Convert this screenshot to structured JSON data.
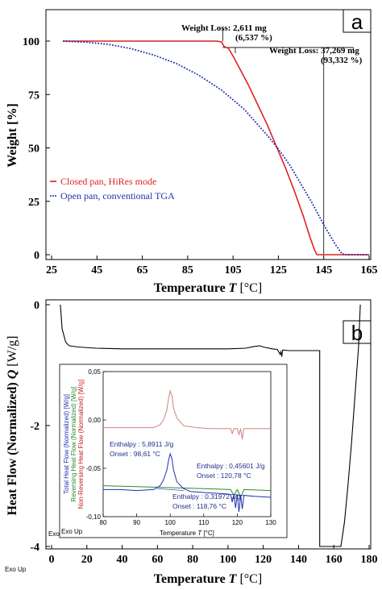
{
  "chart_data": [
    {
      "panel": "a",
      "type": "line",
      "xlabel_prefix": "Temperature ",
      "xlabel_symbol": "T",
      "xlabel_unit": "[°C]",
      "ylabel": "Weight [%]",
      "xlim": [
        25,
        165
      ],
      "ylim": [
        0,
        105
      ],
      "xticks": [
        25,
        45,
        65,
        85,
        105,
        125,
        145,
        165
      ],
      "yticks": [
        0,
        25,
        50,
        75,
        100
      ],
      "series": [
        {
          "name": "Closed pan, HiRes mode",
          "color": "#e02020",
          "dash": "solid",
          "x": [
            30,
            50,
            70,
            90,
            98,
            100,
            101,
            103,
            105,
            108,
            112,
            116,
            120,
            124,
            128,
            132,
            136,
            139,
            141,
            142,
            145,
            155,
            165
          ],
          "y": [
            100,
            100,
            100,
            100,
            100,
            99.6,
            97.5,
            96.6,
            93,
            87,
            79,
            70,
            61,
            51,
            41,
            30,
            18,
            8,
            2,
            0,
            0,
            0,
            0
          ]
        },
        {
          "name": "Open pan, conventional TGA",
          "color": "#2030b0",
          "dash": "dotted",
          "x": [
            30,
            40,
            50,
            60,
            70,
            80,
            90,
            100,
            110,
            120,
            125,
            130,
            135,
            140,
            145,
            150,
            153,
            155,
            165
          ],
          "y": [
            100,
            99.5,
            98.5,
            96.5,
            93.5,
            89.5,
            84,
            77,
            68,
            56,
            49.5,
            42,
            33,
            24,
            14,
            5,
            0.5,
            0,
            0
          ]
        }
      ],
      "annotations": [
        {
          "text": "Weight Loss: 2,611 mg",
          "sub": "(6,537 %)"
        },
        {
          "text": "Weight Loss: 37,269 mg",
          "sub": "(93,332 %)"
        }
      ]
    },
    {
      "panel": "b",
      "type": "line",
      "xlabel_prefix": "Temperature ",
      "xlabel_symbol": "T",
      "xlabel_unit": "[°C]",
      "ylabel_prefix": "Heat Flow (Normalized) ",
      "ylabel_symbol": "Q",
      "ylabel_unit": "[W/g]",
      "xlim": [
        0,
        180
      ],
      "ylim": [
        -4,
        0
      ],
      "xticks": [
        0,
        20,
        40,
        60,
        80,
        100,
        120,
        140,
        160,
        180
      ],
      "yticks": [
        0,
        -2,
        -4
      ],
      "series": [
        {
          "name": "Total heat flow",
          "color": "#000000",
          "x": [
            5,
            6,
            8,
            10,
            15,
            25,
            40,
            60,
            80,
            100,
            110,
            115,
            118,
            120,
            125,
            128,
            129.5,
            130,
            130.5,
            131,
            135,
            145,
            152,
            152,
            164,
            166,
            168,
            170,
            172,
            174,
            175
          ],
          "y": [
            0,
            -0.4,
            -0.62,
            -0.68,
            -0.7,
            -0.72,
            -0.73,
            -0.73,
            -0.73,
            -0.73,
            -0.72,
            -0.69,
            -0.68,
            -0.7,
            -0.73,
            -0.74,
            -0.82,
            -0.78,
            -0.86,
            -0.75,
            -0.76,
            -0.76,
            -0.76,
            -4,
            -4,
            -3.6,
            -3.0,
            -2.3,
            -1.5,
            -0.7,
            0
          ]
        }
      ],
      "corner_text": "Exo Up",
      "inset": {
        "type": "line",
        "xlim": [
          80,
          130
        ],
        "ylim": [
          -0.1,
          0.05
        ],
        "xticks": [
          80,
          90,
          100,
          110,
          120,
          130
        ],
        "yticks": [
          0.05,
          0.0,
          -0.05,
          -0.1
        ],
        "ytick_labels": [
          "0,05",
          "0,00",
          "-0,05",
          "-0,10"
        ],
        "xlabel_prefix": "Temperature ",
        "xlabel_symbol": "T",
        "xlabel_unit": "[°C]",
        "ylabels": [
          {
            "text": "Total Heat Flow (Normalized) [W/g]",
            "color": "#2030b0"
          },
          {
            "text": "Reversing Heat Flow (Normalized) [W/g]",
            "color": "#2a8a2a"
          },
          {
            "text": "Non-Reversing Heat Flow (Normalized) [W/g]",
            "color": "#c02020"
          }
        ],
        "series": [
          {
            "name": "Non-Reversing",
            "color": "#d08080",
            "x": [
              80,
              85,
              90,
              95,
              97,
              98,
              99,
              99.5,
              100,
              100.5,
              101,
              102,
              104,
              108,
              112,
              116,
              118,
              118.5,
              119,
              120,
              120.5,
              121,
              121.5,
              122,
              125,
              130
            ],
            "y": [
              -0.008,
              -0.008,
              -0.008,
              -0.008,
              -0.005,
              0.0,
              0.01,
              0.022,
              0.03,
              0.025,
              0.012,
              0.002,
              -0.006,
              -0.008,
              -0.009,
              -0.009,
              -0.009,
              -0.014,
              -0.009,
              -0.009,
              -0.015,
              -0.009,
              -0.02,
              -0.009,
              -0.009,
              -0.009
            ]
          },
          {
            "name": "Reversing",
            "color": "#2a8a2a",
            "x": [
              80,
              90,
              100,
              110,
              118,
              119,
              120,
              121,
              122,
              130
            ],
            "y": [
              -0.068,
              -0.069,
              -0.07,
              -0.071,
              -0.072,
              -0.078,
              -0.072,
              -0.08,
              -0.072,
              -0.073
            ]
          },
          {
            "name": "Total",
            "color": "#2030b0",
            "x": [
              80,
              85,
              90,
              95,
              97,
              98,
              99,
              99.5,
              100,
              100.5,
              101,
              102,
              104,
              106,
              110,
              115,
              118,
              118.5,
              119,
              119.5,
              120,
              120.5,
              121,
              121.5,
              122,
              125,
              130
            ],
            "y": [
              -0.072,
              -0.072,
              -0.073,
              -0.072,
              -0.068,
              -0.062,
              -0.052,
              -0.042,
              -0.035,
              -0.04,
              -0.052,
              -0.064,
              -0.071,
              -0.074,
              -0.075,
              -0.076,
              -0.077,
              -0.085,
              -0.077,
              -0.091,
              -0.077,
              -0.095,
              -0.078,
              -0.092,
              -0.078,
              -0.079,
              -0.08
            ]
          }
        ],
        "annotations": [
          {
            "line1": "Enthalpy : 5,8911 J/g",
            "line2": "Onset : 98,61 °C"
          },
          {
            "line1": "Enthalpy : 0,45601 J/g",
            "line2": "Onset : 120,78 °C"
          },
          {
            "line1": "Enthalpy : 0,31972 J/g",
            "line2": "Onset : 118,76 °C"
          }
        ],
        "corner_text": "Exo Up"
      }
    }
  ],
  "panel_labels": [
    "a",
    "b"
  ],
  "footer_text": "Exo Up"
}
